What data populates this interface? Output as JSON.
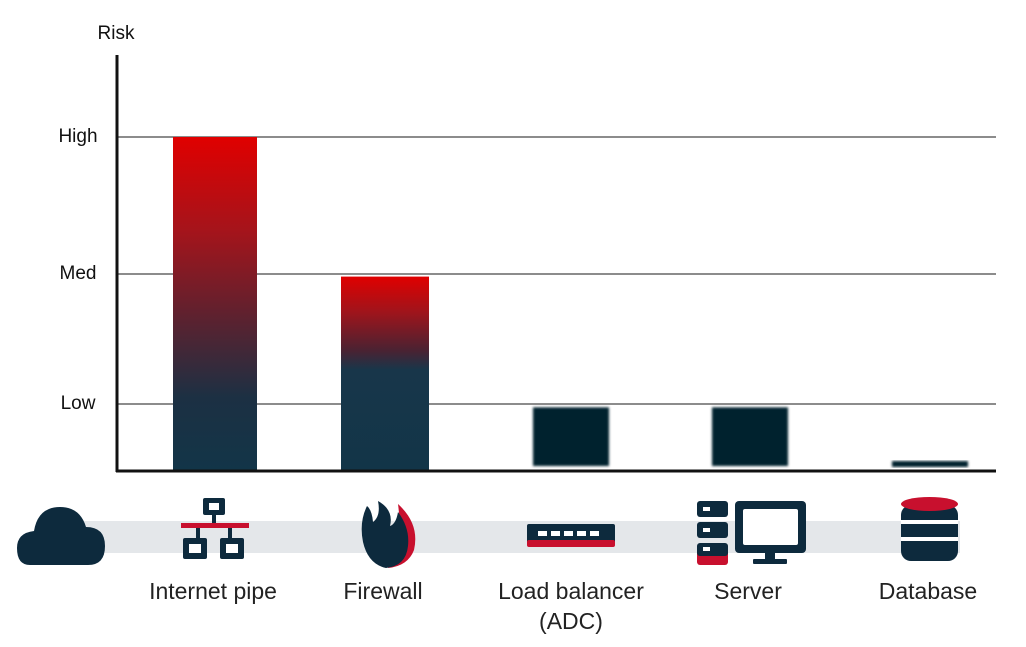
{
  "chart_data": {
    "type": "bar",
    "ylabel": "Risk",
    "yticks": [
      {
        "label": "Low",
        "value": 1
      },
      {
        "label": "Med",
        "value": 2
      },
      {
        "label": "High",
        "value": 3
      }
    ],
    "ylim": [
      0,
      3.6
    ],
    "grid": true,
    "categories": [
      {
        "label": [
          "Internet pipe"
        ],
        "icon": "network-icon"
      },
      {
        "label": [
          "Firewall"
        ],
        "icon": "flame-icon"
      },
      {
        "label": [
          "Load balancer",
          "(ADC)"
        ],
        "icon": "load-balancer-icon"
      },
      {
        "label": [
          "Server"
        ],
        "icon": "server-icon"
      },
      {
        "label": [
          "Database"
        ],
        "icon": "database-icon"
      }
    ],
    "values": [
      3.0,
      1.98,
      0.95,
      0.95,
      0.08
    ],
    "leading_icon": "cloud-icon",
    "colors": {
      "high": "#e00000",
      "low": "#123045",
      "dark": "#04212f",
      "accent": "#c8102e",
      "icon": "#0d2a3d",
      "band": "#e4e7ea",
      "grid": "#1a1a1a"
    }
  }
}
